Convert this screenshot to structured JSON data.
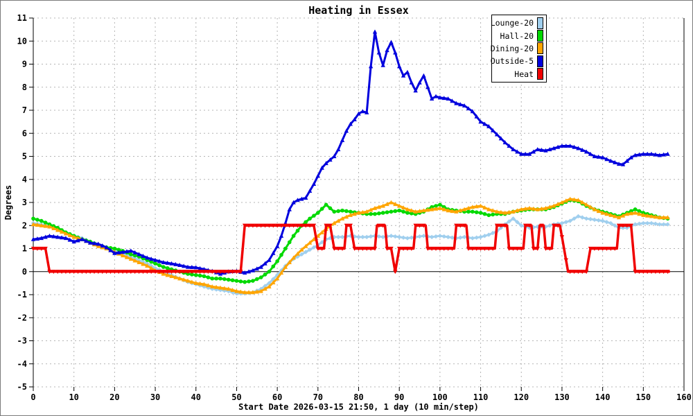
{
  "chart_data": {
    "type": "line",
    "title": "Heating in Essex",
    "xlabel": "Start Date 2026-03-15 21:50, 1 day (10 min/step)",
    "ylabel": "Degrees",
    "xlim": [
      0,
      160
    ],
    "ylim": [
      -5,
      11
    ],
    "x_tick_step": 10,
    "y_tick_step": 1,
    "grid": true,
    "grid_color": "#b4b4b4",
    "axis_color": "#000000",
    "background": "#ffffff",
    "zero_line": true,
    "legend_position": "top-right",
    "series": [
      {
        "name": "Lounge-20",
        "color": "#a0cfee",
        "marker": "diamond",
        "x": [
          0,
          2,
          4,
          6,
          8,
          10,
          12,
          14,
          16,
          18,
          20,
          22,
          24,
          26,
          28,
          30,
          32,
          34,
          36,
          38,
          40,
          42,
          44,
          46,
          48,
          50,
          52,
          54,
          56,
          58,
          60,
          62,
          64,
          66,
          68,
          70,
          72,
          74,
          76,
          78,
          80,
          82,
          84,
          86,
          88,
          90,
          92,
          94,
          96,
          98,
          100,
          102,
          104,
          106,
          108,
          110,
          112,
          114,
          116,
          118,
          120,
          122,
          124,
          126,
          128,
          130,
          132,
          134,
          136,
          138,
          140,
          142,
          144,
          146,
          148,
          150,
          152,
          154,
          156
        ],
        "y": [
          2.1,
          2.05,
          1.95,
          1.85,
          1.7,
          1.55,
          1.45,
          1.3,
          1.15,
          1.05,
          0.95,
          0.8,
          0.65,
          0.5,
          0.35,
          0.15,
          0,
          -0.15,
          -0.3,
          -0.45,
          -0.55,
          -0.65,
          -0.75,
          -0.8,
          -0.85,
          -0.95,
          -0.95,
          -0.9,
          -0.75,
          -0.5,
          -0.15,
          0.25,
          0.55,
          0.75,
          0.95,
          1.15,
          1.4,
          1.5,
          1.5,
          1.55,
          1.5,
          1.5,
          1.55,
          1.5,
          1.55,
          1.5,
          1.45,
          1.5,
          1.55,
          1.5,
          1.55,
          1.5,
          1.45,
          1.5,
          1.45,
          1.5,
          1.6,
          1.75,
          2.05,
          2.3,
          2.0,
          1.9,
          1.95,
          1.95,
          2.05,
          2.1,
          2.2,
          2.4,
          2.3,
          2.25,
          2.2,
          2.1,
          1.9,
          1.9,
          2.05,
          2.1,
          2.1,
          2.05,
          2.05
        ]
      },
      {
        "name": "Hall-20",
        "color": "#00d900",
        "marker": "circle",
        "x": [
          0,
          2,
          4,
          6,
          8,
          10,
          12,
          14,
          16,
          18,
          20,
          22,
          24,
          26,
          28,
          30,
          32,
          34,
          36,
          38,
          40,
          42,
          44,
          46,
          48,
          50,
          52,
          54,
          56,
          58,
          60,
          62,
          64,
          66,
          68,
          70,
          72,
          74,
          76,
          78,
          80,
          82,
          84,
          86,
          88,
          90,
          92,
          94,
          96,
          98,
          100,
          102,
          104,
          106,
          108,
          110,
          112,
          114,
          116,
          118,
          120,
          122,
          124,
          126,
          128,
          130,
          132,
          134,
          136,
          138,
          140,
          142,
          144,
          146,
          148,
          150,
          152,
          154,
          156
        ],
        "y": [
          2.3,
          2.2,
          2.05,
          1.9,
          1.7,
          1.55,
          1.4,
          1.3,
          1.15,
          1.05,
          1.0,
          0.9,
          0.75,
          0.65,
          0.5,
          0.35,
          0.2,
          0.1,
          0,
          -0.1,
          -0.15,
          -0.2,
          -0.3,
          -0.3,
          -0.35,
          -0.4,
          -0.45,
          -0.4,
          -0.25,
          0,
          0.45,
          1.0,
          1.55,
          2.0,
          2.3,
          2.55,
          2.9,
          2.6,
          2.65,
          2.6,
          2.55,
          2.5,
          2.5,
          2.55,
          2.6,
          2.65,
          2.55,
          2.5,
          2.6,
          2.8,
          2.9,
          2.7,
          2.65,
          2.6,
          2.6,
          2.55,
          2.45,
          2.5,
          2.5,
          2.6,
          2.65,
          2.7,
          2.7,
          2.7,
          2.8,
          2.95,
          3.1,
          3.05,
          2.85,
          2.7,
          2.6,
          2.5,
          2.4,
          2.55,
          2.7,
          2.55,
          2.45,
          2.35,
          2.3
        ]
      },
      {
        "name": "Dining-20",
        "color": "#ffa500",
        "marker": "triangle-up",
        "x": [
          0,
          2,
          4,
          6,
          8,
          10,
          12,
          14,
          16,
          18,
          20,
          22,
          24,
          26,
          28,
          30,
          32,
          34,
          36,
          38,
          40,
          42,
          44,
          46,
          48,
          50,
          52,
          54,
          56,
          58,
          60,
          62,
          64,
          66,
          68,
          70,
          72,
          74,
          76,
          78,
          80,
          82,
          84,
          86,
          88,
          90,
          92,
          94,
          96,
          98,
          100,
          102,
          104,
          106,
          108,
          110,
          112,
          114,
          116,
          118,
          120,
          122,
          124,
          126,
          128,
          130,
          132,
          134,
          136,
          138,
          140,
          142,
          144,
          146,
          148,
          150,
          152,
          154,
          156
        ],
        "y": [
          2.05,
          2.0,
          1.95,
          1.8,
          1.65,
          1.5,
          1.4,
          1.25,
          1.1,
          1.0,
          0.85,
          0.7,
          0.55,
          0.4,
          0.25,
          0.05,
          -0.1,
          -0.2,
          -0.3,
          -0.4,
          -0.5,
          -0.55,
          -0.65,
          -0.7,
          -0.75,
          -0.85,
          -0.9,
          -0.9,
          -0.85,
          -0.65,
          -0.3,
          0.2,
          0.6,
          0.95,
          1.25,
          1.55,
          1.85,
          2.1,
          2.3,
          2.45,
          2.55,
          2.6,
          2.75,
          2.85,
          3.0,
          2.85,
          2.7,
          2.6,
          2.65,
          2.7,
          2.75,
          2.65,
          2.6,
          2.7,
          2.8,
          2.85,
          2.7,
          2.6,
          2.55,
          2.6,
          2.7,
          2.75,
          2.7,
          2.75,
          2.85,
          3.0,
          3.15,
          3.1,
          2.9,
          2.7,
          2.55,
          2.45,
          2.35,
          2.5,
          2.55,
          2.45,
          2.4,
          2.35,
          2.35
        ]
      },
      {
        "name": "Outside-5",
        "color": "#0000dd",
        "marker": "triangle-up",
        "x": [
          0,
          2,
          4,
          6,
          8,
          10,
          12,
          14,
          16,
          18,
          20,
          22,
          24,
          26,
          28,
          30,
          32,
          34,
          36,
          38,
          40,
          42,
          44,
          46,
          48,
          50,
          52,
          54,
          56,
          58,
          60,
          61,
          62,
          63,
          64,
          65,
          66,
          67,
          68,
          69,
          70,
          71,
          72,
          73,
          74,
          75,
          76,
          77,
          78,
          79,
          80,
          81,
          82,
          83,
          84,
          85,
          86,
          87,
          88,
          89,
          90,
          91,
          92,
          93,
          94,
          95,
          96,
          97,
          98,
          99,
          100,
          102,
          104,
          106,
          108,
          110,
          112,
          114,
          116,
          118,
          120,
          122,
          124,
          126,
          128,
          130,
          132,
          134,
          136,
          138,
          140,
          142,
          144,
          145,
          146,
          147,
          148,
          150,
          152,
          154,
          156
        ],
        "y": [
          1.4,
          1.45,
          1.55,
          1.5,
          1.45,
          1.3,
          1.4,
          1.25,
          1.2,
          1.05,
          0.8,
          0.85,
          0.9,
          0.75,
          0.6,
          0.5,
          0.4,
          0.35,
          0.28,
          0.2,
          0.18,
          0.1,
          0.02,
          -0.1,
          0.0,
          0.02,
          -0.05,
          0.05,
          0.2,
          0.5,
          1.1,
          1.55,
          2.1,
          2.7,
          3.0,
          3.1,
          3.15,
          3.2,
          3.5,
          3.8,
          4.15,
          4.5,
          4.7,
          4.85,
          5.0,
          5.3,
          5.7,
          6.1,
          6.4,
          6.6,
          6.85,
          6.95,
          6.9,
          8.9,
          10.4,
          9.5,
          8.95,
          9.6,
          9.95,
          9.5,
          8.9,
          8.5,
          8.65,
          8.2,
          7.85,
          8.2,
          8.5,
          8.0,
          7.5,
          7.6,
          7.55,
          7.5,
          7.3,
          7.2,
          6.95,
          6.5,
          6.3,
          5.95,
          5.6,
          5.3,
          5.1,
          5.1,
          5.3,
          5.25,
          5.35,
          5.45,
          5.45,
          5.35,
          5.2,
          5.0,
          4.95,
          4.8,
          4.67,
          4.65,
          4.8,
          4.95,
          5.05,
          5.1,
          5.1,
          5.05,
          5.1
        ]
      },
      {
        "name": "Heat",
        "color": "#f00000",
        "marker": "triangle-down",
        "x": [
          0,
          3,
          4,
          51,
          52,
          69,
          70,
          71.5,
          72,
          73,
          74,
          76.5,
          77,
          78,
          79,
          84,
          84.5,
          86.5,
          87,
          88,
          89,
          90,
          93.5,
          94,
          96.5,
          97,
          103.5,
          104,
          106.5,
          107,
          113.5,
          114,
          116.5,
          117,
          120.5,
          121,
          122.5,
          123,
          124,
          124.5,
          125.5,
          126,
          127.5,
          128,
          129.5,
          130.5,
          131.5,
          136,
          137,
          143.5,
          144,
          147,
          148,
          156.3
        ],
        "y": [
          1,
          1,
          0,
          0,
          2,
          2,
          1,
          1,
          2,
          2,
          1,
          1,
          2,
          2,
          1,
          1,
          2,
          2,
          1,
          1,
          0,
          1,
          1,
          2,
          2,
          1,
          1,
          2,
          2,
          1,
          1,
          2,
          2,
          1,
          1,
          2,
          2,
          1,
          1,
          2,
          2,
          1,
          1,
          2,
          2,
          1,
          0,
          0,
          1,
          1,
          2,
          2,
          0,
          0
        ]
      }
    ]
  }
}
